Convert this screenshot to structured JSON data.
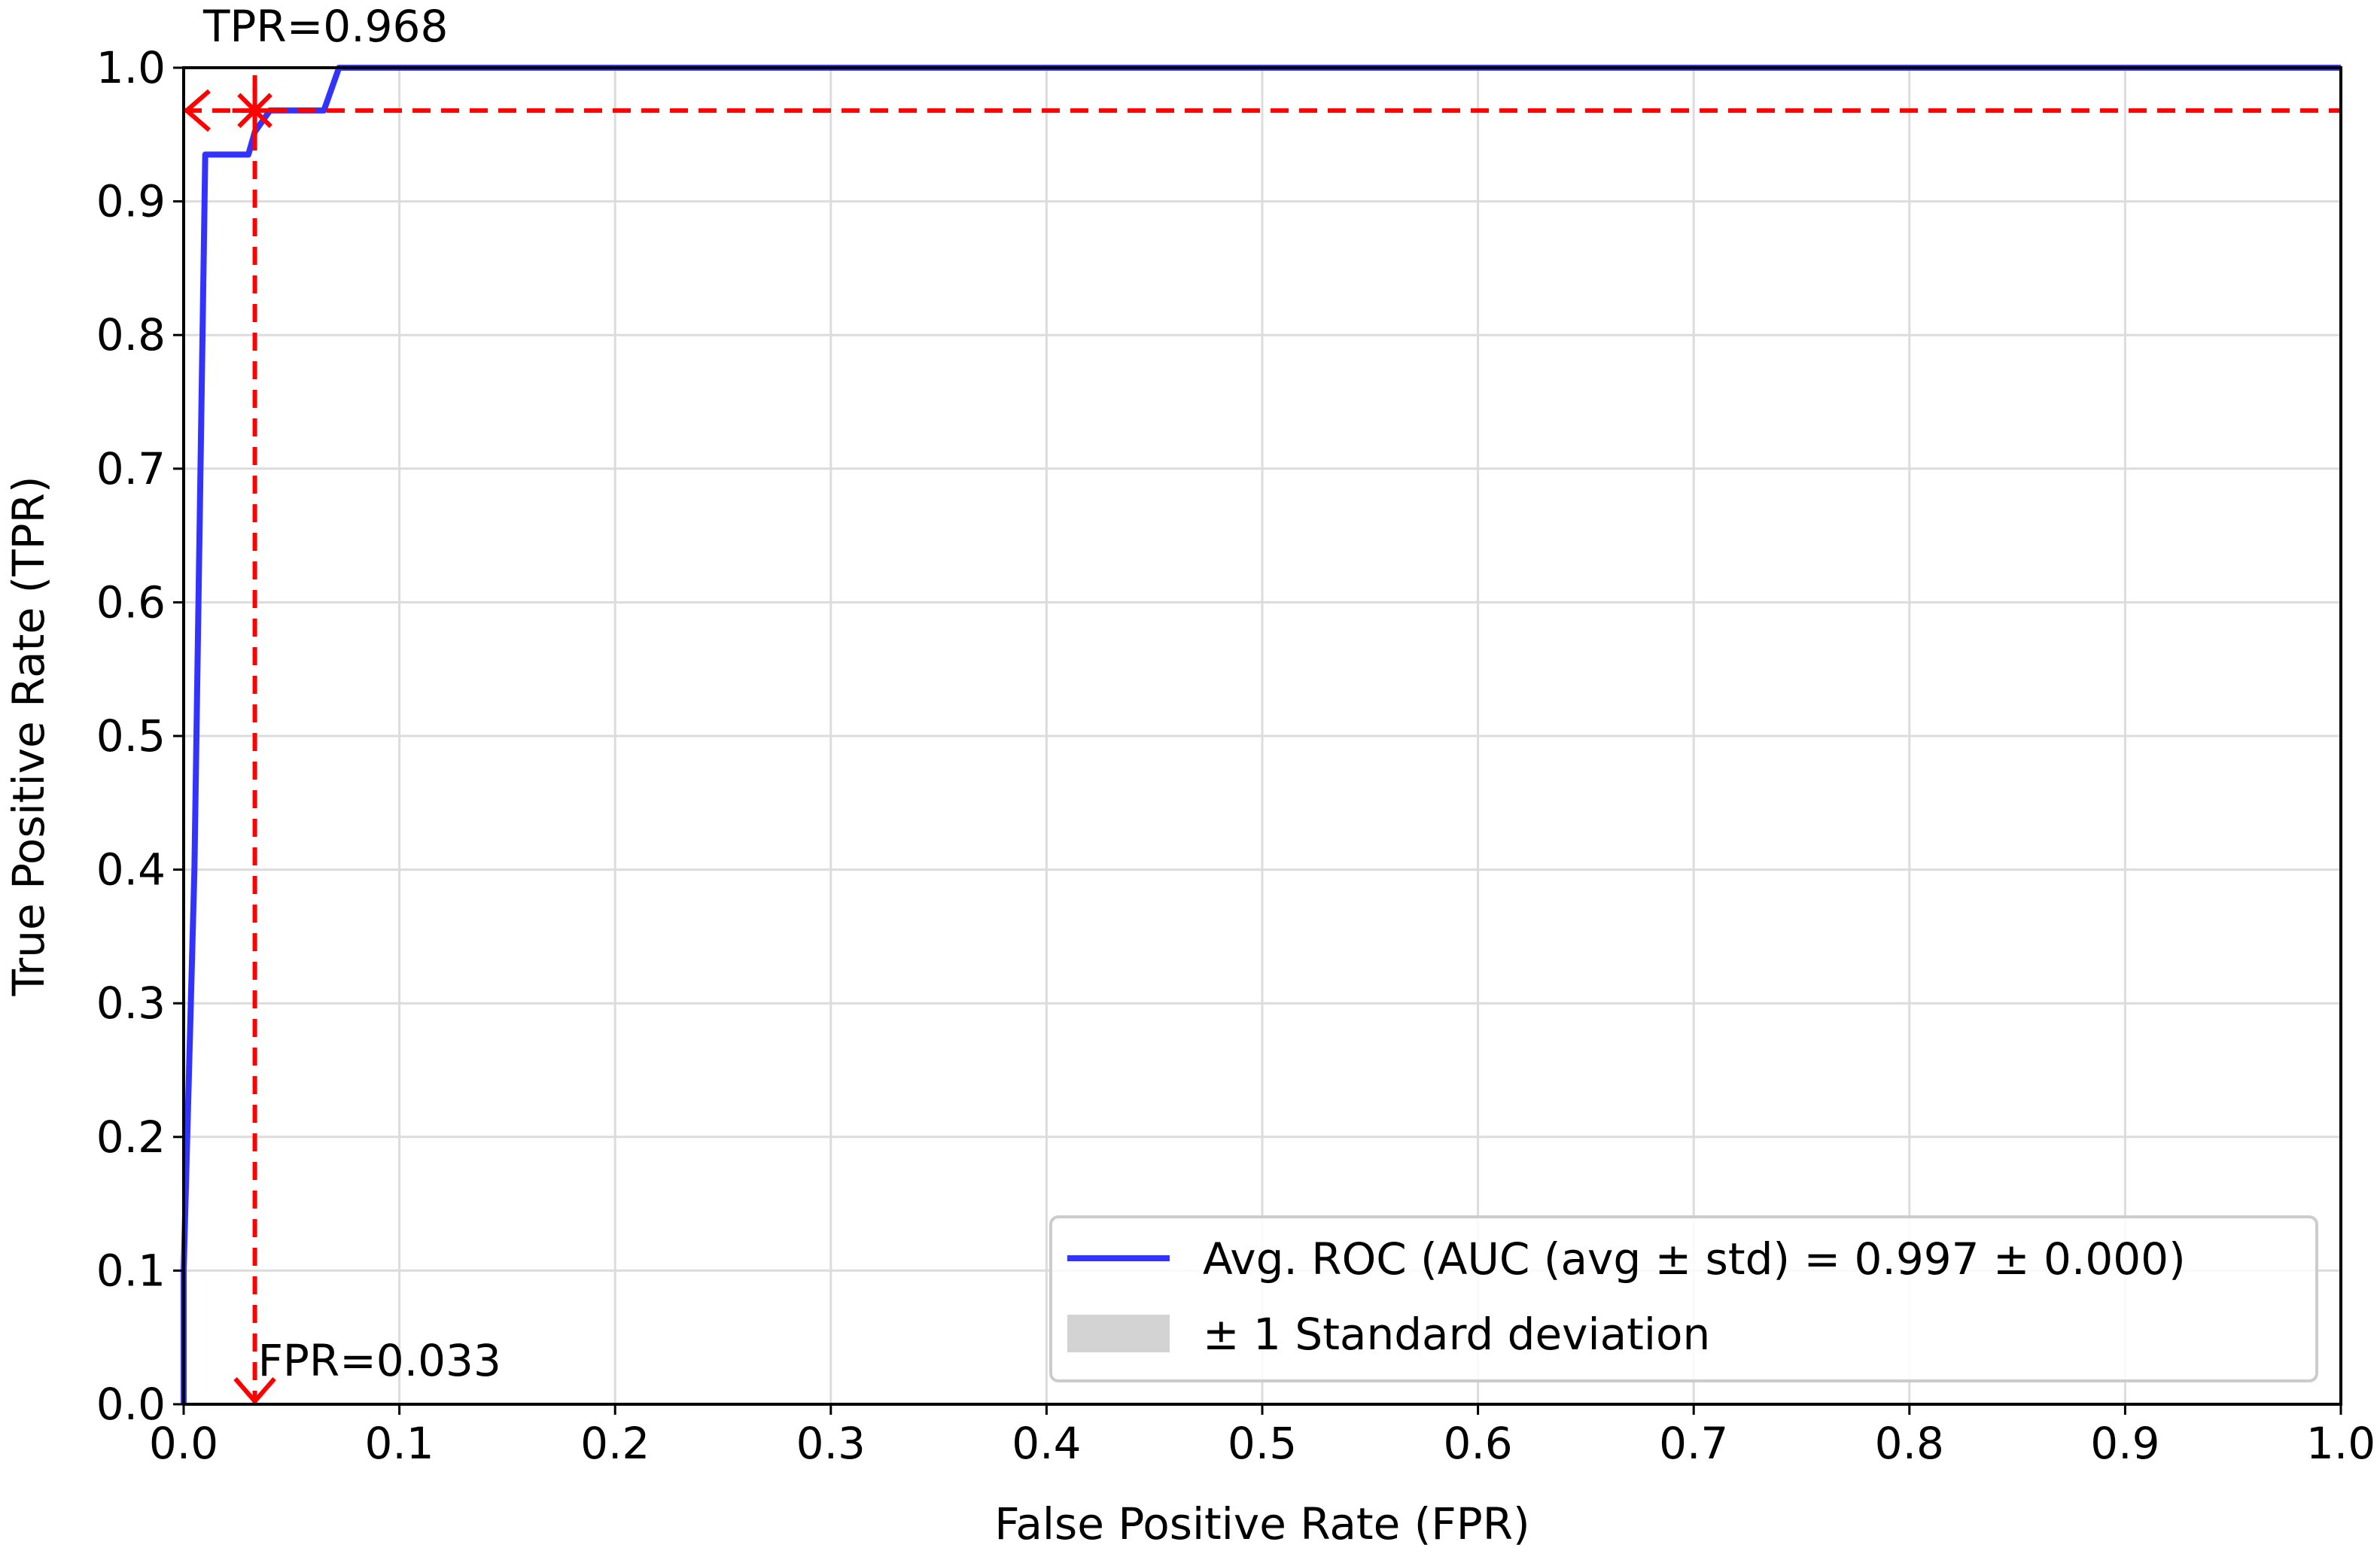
{
  "chart_data": {
    "type": "line",
    "title": "",
    "xlabel": "False Positive Rate (FPR)",
    "ylabel": "True Positive Rate (TPR)",
    "xlim": [
      0.0,
      1.0
    ],
    "ylim": [
      0.0,
      1.0
    ],
    "xticks": [
      "0.0",
      "0.1",
      "0.2",
      "0.3",
      "0.4",
      "0.5",
      "0.6",
      "0.7",
      "0.8",
      "0.9",
      "1.0"
    ],
    "yticks": [
      "0.0",
      "0.1",
      "0.2",
      "0.3",
      "0.4",
      "0.5",
      "0.6",
      "0.7",
      "0.8",
      "0.9",
      "1.0"
    ],
    "grid": true,
    "legend_placement": "lower-right",
    "series": [
      {
        "name": "Avg. ROC (AUC (avg ± std) = 0.997 ± 0.000)",
        "color": "#3333ff",
        "x": [
          0.0,
          0.0,
          0.005,
          0.01,
          0.01,
          0.03,
          0.033,
          0.04,
          0.065,
          0.072,
          1.0
        ],
        "y": [
          0.0,
          0.1,
          0.4,
          0.935,
          0.935,
          0.935,
          0.952,
          0.968,
          0.968,
          1.0,
          1.0
        ]
      }
    ],
    "std_band": {
      "name": "± 1 Standard deviation",
      "color": "#d3d3d3"
    },
    "operating_point": {
      "fpr": 0.033,
      "tpr": 0.968,
      "fpr_label": "FPR=0.033",
      "tpr_label": "TPR=0.968",
      "color": "#ff0000"
    }
  }
}
